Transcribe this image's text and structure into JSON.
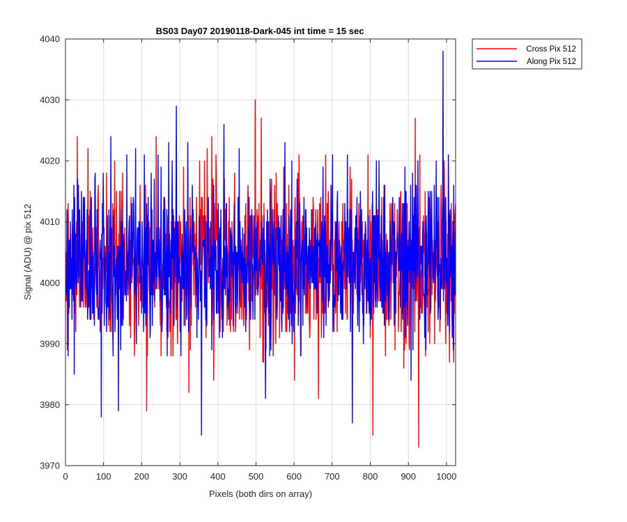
{
  "chart_data": {
    "type": "line",
    "title": "BS03 Day07 20190118-Dark-045 int time = 15 sec",
    "xlabel": "Pixels (both dirs on array)",
    "ylabel": "Signal (ADU) @ pix 512",
    "xlim": [
      0,
      1024
    ],
    "ylim": [
      3970,
      4040
    ],
    "xticks": [
      0,
      100,
      200,
      300,
      400,
      500,
      600,
      700,
      800,
      900,
      1000
    ],
    "yticks": [
      3970,
      3980,
      3990,
      4000,
      4010,
      4020,
      4030,
      4040
    ],
    "grid": true,
    "legend_position": "outside top-right",
    "series": [
      {
        "name": "Cross Pix 512",
        "color": "#ff0000",
        "mean": 4003,
        "std": 6.5,
        "points": 1024,
        "notable_points": [
          [
            30,
            4024
          ],
          [
            58,
            4022
          ],
          [
            128,
            4020
          ],
          [
            237,
            4024
          ],
          [
            351,
            4020
          ],
          [
            371,
            4022
          ],
          [
            383,
            4024
          ],
          [
            497,
            4030
          ],
          [
            513,
            4027
          ],
          [
            600,
            4029
          ],
          [
            612,
            4021
          ],
          [
            917,
            4027
          ],
          [
            212,
            3979
          ],
          [
            323,
            3982
          ],
          [
            600,
            3984
          ],
          [
            663,
            3981
          ],
          [
            806,
            3975
          ],
          [
            926,
            3973
          ]
        ]
      },
      {
        "name": "Along Pix 512",
        "color": "#0000ff",
        "mean": 4003,
        "std": 6.3,
        "points": 1024,
        "notable_points": [
          [
            93,
            4023
          ],
          [
            118,
            4024
          ],
          [
            183,
            4022
          ],
          [
            270,
            4023
          ],
          [
            290,
            4029
          ],
          [
            320,
            4023
          ],
          [
            356,
            3975
          ],
          [
            415,
            4026
          ],
          [
            455,
            4022
          ],
          [
            575,
            4023
          ],
          [
            700,
            4021
          ],
          [
            752,
            3977
          ],
          [
            822,
            4020
          ],
          [
            972,
            4020
          ],
          [
            990,
            4038
          ],
          [
            1004,
            4021
          ],
          [
            93,
            3978
          ],
          [
            138,
            3979
          ],
          [
            524,
            3981
          ]
        ]
      }
    ]
  }
}
